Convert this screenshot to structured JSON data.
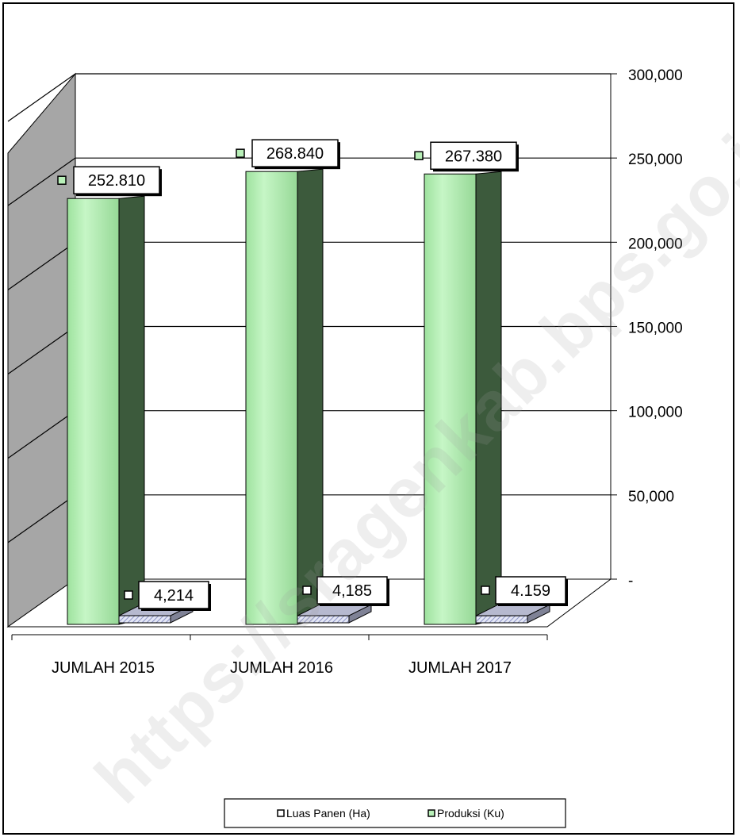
{
  "chart_data": {
    "type": "bar",
    "categories": [
      "JUMLAH 2015",
      "JUMLAH 2016",
      "JUMLAH 2017"
    ],
    "series": [
      {
        "name": "Luas Panen (Ha)",
        "values": [
          4214,
          4185,
          4159
        ],
        "labels": [
          "4,214",
          "4,185",
          "4.159"
        ],
        "color": "#d8dcef"
      },
      {
        "name": "Produksi (Ku)",
        "values": [
          252810,
          268840,
          267380
        ],
        "labels": [
          "252.810",
          "268.840",
          "267.380"
        ],
        "color": "#b8f0b8"
      }
    ],
    "ylim": [
      0,
      300000
    ],
    "yticks": [
      0,
      50000,
      100000,
      150000,
      200000,
      250000,
      300000
    ],
    "ytick_labels": [
      "-",
      "50,000",
      "100,000",
      "150,000",
      "200,000",
      "250,000",
      "300,000"
    ],
    "grid": true,
    "legend": "bottom",
    "three_d": true,
    "watermark": "https://sragenkab.bps.go.id"
  }
}
